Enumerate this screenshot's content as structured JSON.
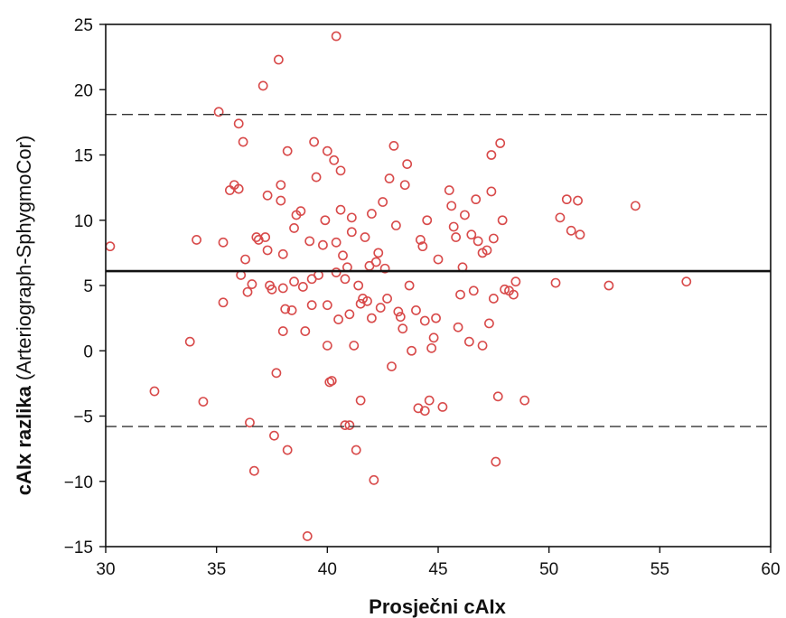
{
  "chart_data": {
    "type": "scatter",
    "xlabel": "Prosječni cAIx",
    "ylabel": "cAIx razlika",
    "ylabel_suffix": "(Arteriograph-SphygmoCor)",
    "xlim": [
      30,
      60
    ],
    "ylim": [
      -15,
      25
    ],
    "xticks": [
      30,
      35,
      40,
      45,
      50,
      55,
      60
    ],
    "yticks": [
      -15,
      -10,
      -5,
      0,
      5,
      10,
      15,
      20,
      25
    ],
    "grid": false,
    "marker_color": "#d84a4a",
    "mean_line": 6.1,
    "upper_limit": 18.1,
    "lower_limit": -5.8,
    "points": [
      [
        30.2,
        8.0
      ],
      [
        32.2,
        -3.1
      ],
      [
        33.8,
        0.7
      ],
      [
        34.1,
        8.5
      ],
      [
        34.4,
        -3.9
      ],
      [
        35.1,
        18.3
      ],
      [
        35.3,
        8.3
      ],
      [
        35.3,
        3.7
      ],
      [
        35.6,
        12.3
      ],
      [
        35.8,
        12.7
      ],
      [
        36.0,
        12.4
      ],
      [
        36.0,
        17.4
      ],
      [
        36.1,
        5.8
      ],
      [
        36.2,
        16.0
      ],
      [
        36.3,
        7.0
      ],
      [
        36.4,
        4.5
      ],
      [
        36.5,
        -5.5
      ],
      [
        36.6,
        5.1
      ],
      [
        36.7,
        -9.2
      ],
      [
        36.8,
        8.7
      ],
      [
        36.9,
        8.5
      ],
      [
        37.1,
        20.3
      ],
      [
        37.2,
        8.7
      ],
      [
        37.3,
        7.7
      ],
      [
        37.3,
        11.9
      ],
      [
        37.4,
        5.0
      ],
      [
        37.5,
        4.7
      ],
      [
        37.6,
        -6.5
      ],
      [
        37.7,
        -1.7
      ],
      [
        37.8,
        22.3
      ],
      [
        37.9,
        11.5
      ],
      [
        37.9,
        12.7
      ],
      [
        38.0,
        7.4
      ],
      [
        38.0,
        4.8
      ],
      [
        38.0,
        1.5
      ],
      [
        38.1,
        3.2
      ],
      [
        38.2,
        -7.6
      ],
      [
        38.2,
        15.3
      ],
      [
        38.4,
        3.1
      ],
      [
        38.5,
        9.4
      ],
      [
        38.5,
        5.3
      ],
      [
        38.6,
        10.4
      ],
      [
        38.8,
        10.7
      ],
      [
        38.9,
        4.9
      ],
      [
        39.0,
        1.5
      ],
      [
        39.1,
        -14.2
      ],
      [
        39.2,
        8.4
      ],
      [
        39.3,
        5.5
      ],
      [
        39.3,
        3.5
      ],
      [
        39.4,
        16.0
      ],
      [
        39.5,
        13.3
      ],
      [
        39.6,
        5.8
      ],
      [
        39.8,
        8.1
      ],
      [
        39.9,
        10.0
      ],
      [
        40.0,
        15.3
      ],
      [
        40.0,
        3.5
      ],
      [
        40.0,
        0.4
      ],
      [
        40.1,
        -2.4
      ],
      [
        40.2,
        -2.3
      ],
      [
        40.3,
        14.6
      ],
      [
        40.4,
        8.3
      ],
      [
        40.4,
        6.0
      ],
      [
        40.4,
        24.1
      ],
      [
        40.5,
        2.4
      ],
      [
        40.6,
        10.8
      ],
      [
        40.6,
        13.8
      ],
      [
        40.7,
        7.3
      ],
      [
        40.8,
        5.5
      ],
      [
        40.8,
        -5.7
      ],
      [
        40.9,
        6.4
      ],
      [
        41.0,
        2.8
      ],
      [
        41.0,
        -5.7
      ],
      [
        41.1,
        9.1
      ],
      [
        41.1,
        10.2
      ],
      [
        41.2,
        0.4
      ],
      [
        41.3,
        -7.6
      ],
      [
        41.4,
        5.0
      ],
      [
        41.5,
        3.6
      ],
      [
        41.5,
        -3.8
      ],
      [
        41.6,
        4.0
      ],
      [
        41.7,
        8.7
      ],
      [
        41.8,
        3.8
      ],
      [
        41.9,
        6.5
      ],
      [
        42.0,
        10.5
      ],
      [
        42.0,
        2.5
      ],
      [
        42.1,
        -9.9
      ],
      [
        42.2,
        6.8
      ],
      [
        42.3,
        7.5
      ],
      [
        42.4,
        3.3
      ],
      [
        42.5,
        11.4
      ],
      [
        42.6,
        6.3
      ],
      [
        42.7,
        4.0
      ],
      [
        42.8,
        13.2
      ],
      [
        42.9,
        -1.2
      ],
      [
        43.0,
        15.7
      ],
      [
        43.1,
        9.6
      ],
      [
        43.2,
        3.0
      ],
      [
        43.3,
        2.6
      ],
      [
        43.4,
        1.7
      ],
      [
        43.5,
        12.7
      ],
      [
        43.6,
        14.3
      ],
      [
        43.7,
        5.0
      ],
      [
        43.8,
        0.0
      ],
      [
        44.0,
        3.1
      ],
      [
        44.1,
        -4.4
      ],
      [
        44.2,
        8.5
      ],
      [
        44.3,
        8.0
      ],
      [
        44.4,
        2.3
      ],
      [
        44.4,
        -4.6
      ],
      [
        44.5,
        10.0
      ],
      [
        44.6,
        -3.8
      ],
      [
        44.7,
        0.2
      ],
      [
        44.8,
        1.0
      ],
      [
        44.9,
        2.5
      ],
      [
        45.0,
        7.0
      ],
      [
        45.2,
        -4.3
      ],
      [
        45.5,
        12.3
      ],
      [
        45.6,
        11.1
      ],
      [
        45.7,
        9.5
      ],
      [
        45.8,
        8.7
      ],
      [
        45.9,
        1.8
      ],
      [
        46.0,
        4.3
      ],
      [
        46.1,
        6.4
      ],
      [
        46.2,
        10.4
      ],
      [
        46.4,
        0.7
      ],
      [
        46.5,
        8.9
      ],
      [
        46.6,
        4.6
      ],
      [
        46.7,
        11.6
      ],
      [
        46.8,
        8.4
      ],
      [
        47.0,
        7.5
      ],
      [
        47.0,
        0.4
      ],
      [
        47.2,
        7.7
      ],
      [
        47.3,
        2.1
      ],
      [
        47.4,
        12.2
      ],
      [
        47.4,
        15.0
      ],
      [
        47.5,
        8.6
      ],
      [
        47.5,
        4.0
      ],
      [
        47.6,
        -8.5
      ],
      [
        47.7,
        -3.5
      ],
      [
        47.8,
        15.9
      ],
      [
        47.9,
        10.0
      ],
      [
        48.0,
        4.7
      ],
      [
        48.2,
        4.6
      ],
      [
        48.4,
        4.3
      ],
      [
        48.5,
        5.3
      ],
      [
        48.9,
        -3.8
      ],
      [
        50.3,
        5.2
      ],
      [
        50.5,
        10.2
      ],
      [
        50.8,
        11.6
      ],
      [
        51.0,
        9.2
      ],
      [
        51.3,
        11.5
      ],
      [
        51.4,
        8.9
      ],
      [
        52.7,
        5.0
      ],
      [
        53.9,
        11.1
      ],
      [
        56.2,
        5.3
      ]
    ]
  }
}
